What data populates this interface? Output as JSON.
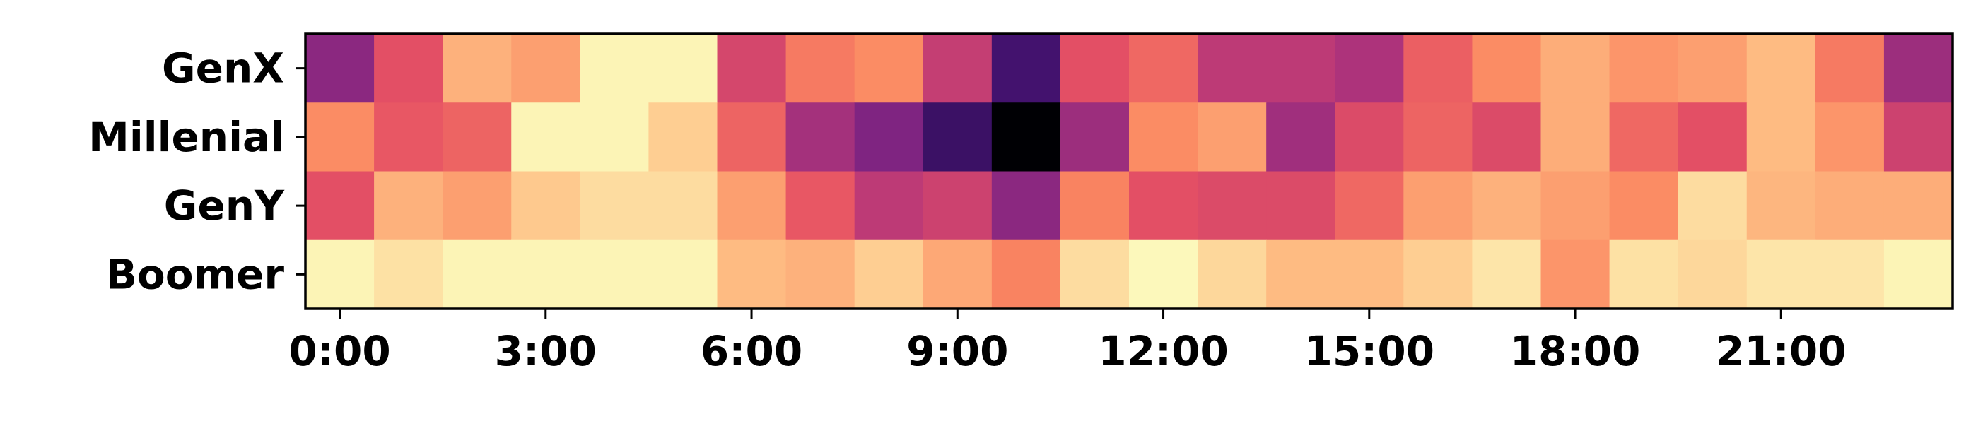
{
  "chart_data": {
    "type": "heatmap",
    "title": "",
    "xlabel": "",
    "ylabel": "",
    "colormap": "magma",
    "value_range": [
      0,
      1
    ],
    "rows": [
      "GenX",
      "Millenial",
      "GenY",
      "Boomer"
    ],
    "columns": [
      "0:00",
      "1:00",
      "2:00",
      "3:00",
      "4:00",
      "5:00",
      "6:00",
      "7:00",
      "8:00",
      "9:00",
      "10:00",
      "11:00",
      "12:00",
      "13:00",
      "14:00",
      "15:00",
      "16:00",
      "17:00",
      "18:00",
      "19:00",
      "20:00",
      "21:00",
      "22:00",
      "23:00"
    ],
    "x_tick_labels": [
      "0:00",
      "3:00",
      "6:00",
      "9:00",
      "12:00",
      "15:00",
      "18:00",
      "21:00"
    ],
    "x_tick_positions": [
      0,
      3,
      6,
      9,
      12,
      15,
      18,
      21
    ],
    "values": [
      [
        0.4,
        0.62,
        0.84,
        0.8,
        0.98,
        0.98,
        0.58,
        0.72,
        0.76,
        0.54,
        0.22,
        0.62,
        0.68,
        0.52,
        0.52,
        0.48,
        0.66,
        0.76,
        0.83,
        0.78,
        0.8,
        0.86,
        0.72,
        0.44
      ],
      [
        0.76,
        0.64,
        0.67,
        0.98,
        0.98,
        0.9,
        0.67,
        0.46,
        0.37,
        0.2,
        0.0,
        0.44,
        0.76,
        0.8,
        0.45,
        0.6,
        0.67,
        0.6,
        0.83,
        0.68,
        0.62,
        0.86,
        0.78,
        0.56
      ],
      [
        0.62,
        0.84,
        0.8,
        0.89,
        0.93,
        0.93,
        0.8,
        0.64,
        0.52,
        0.56,
        0.4,
        0.74,
        0.62,
        0.6,
        0.6,
        0.68,
        0.8,
        0.84,
        0.8,
        0.76,
        0.93,
        0.85,
        0.83,
        0.83
      ],
      [
        0.98,
        0.94,
        0.98,
        0.98,
        0.98,
        0.98,
        0.86,
        0.84,
        0.9,
        0.82,
        0.74,
        0.93,
        0.99,
        0.92,
        0.86,
        0.86,
        0.9,
        0.95,
        0.78,
        0.94,
        0.92,
        0.95,
        0.95,
        0.98
      ]
    ]
  }
}
